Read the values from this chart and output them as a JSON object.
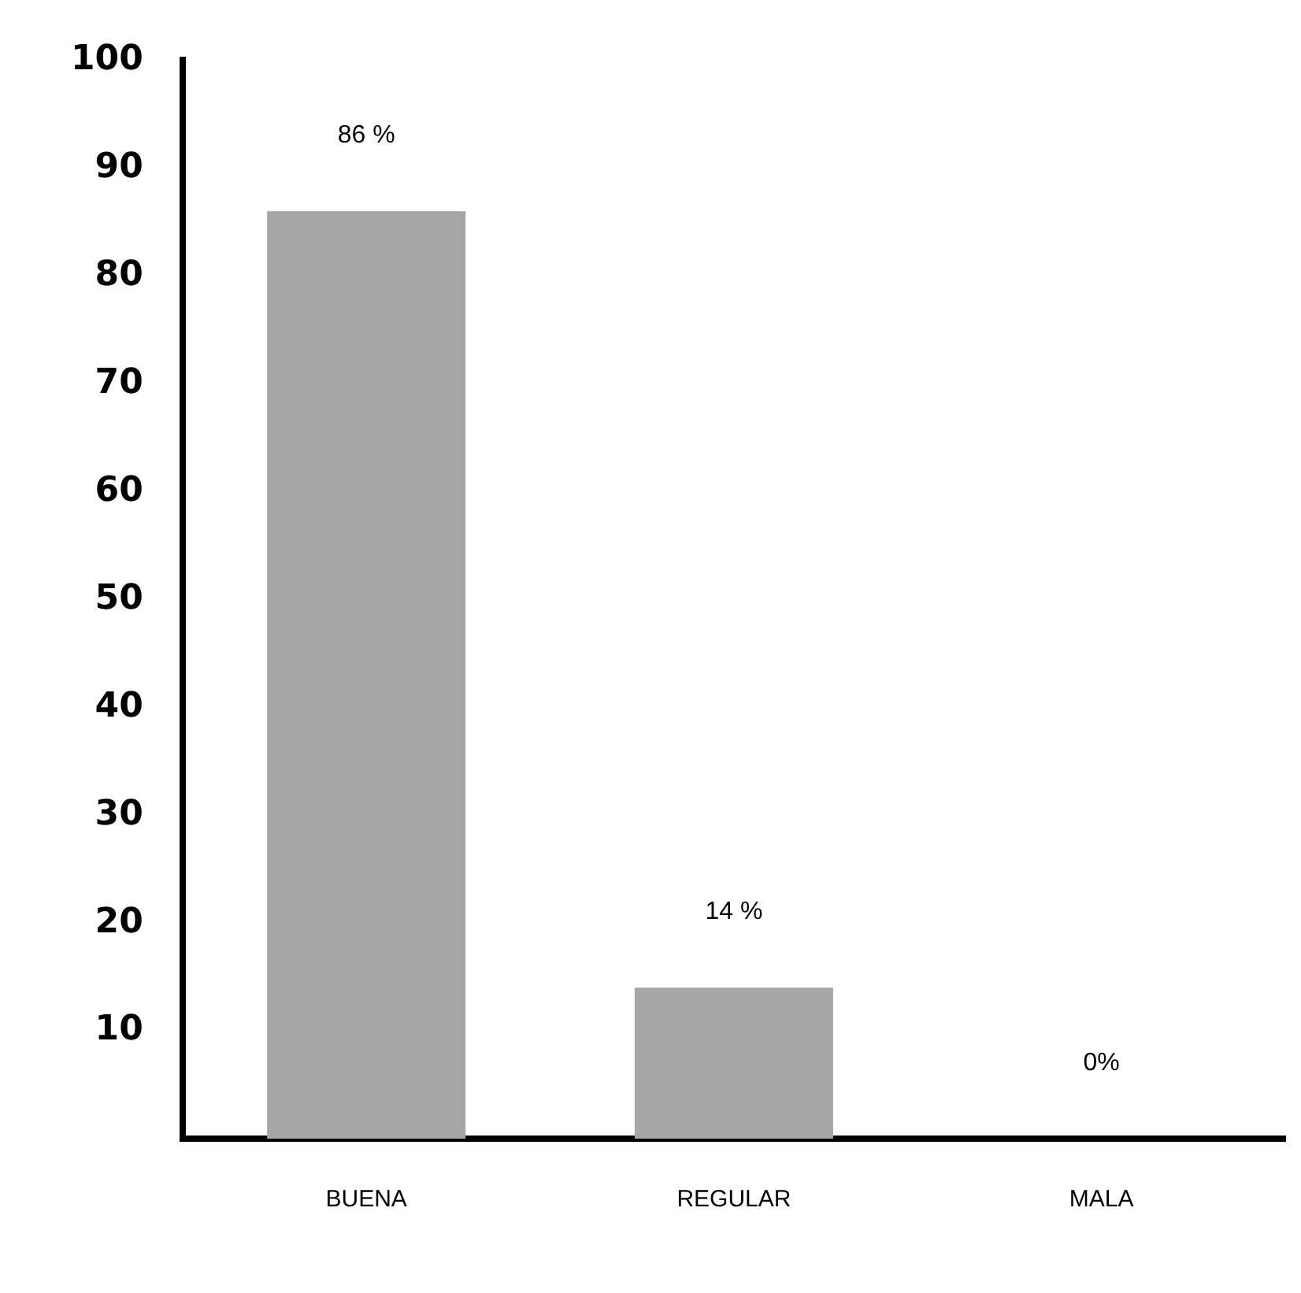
{
  "chart_data": {
    "type": "bar",
    "categories": [
      "BUENA",
      "REGULAR",
      "MALA"
    ],
    "values": [
      86,
      14,
      0
    ],
    "color": "#a6a6a6",
    "value_labels": [
      "86 %",
      "14 %",
      "0%"
    ],
    "ylim": [
      0,
      100
    ],
    "yticks": [
      10,
      20,
      30,
      40,
      50,
      60,
      70,
      80,
      90,
      100
    ],
    "grid": false,
    "legend": false
  }
}
